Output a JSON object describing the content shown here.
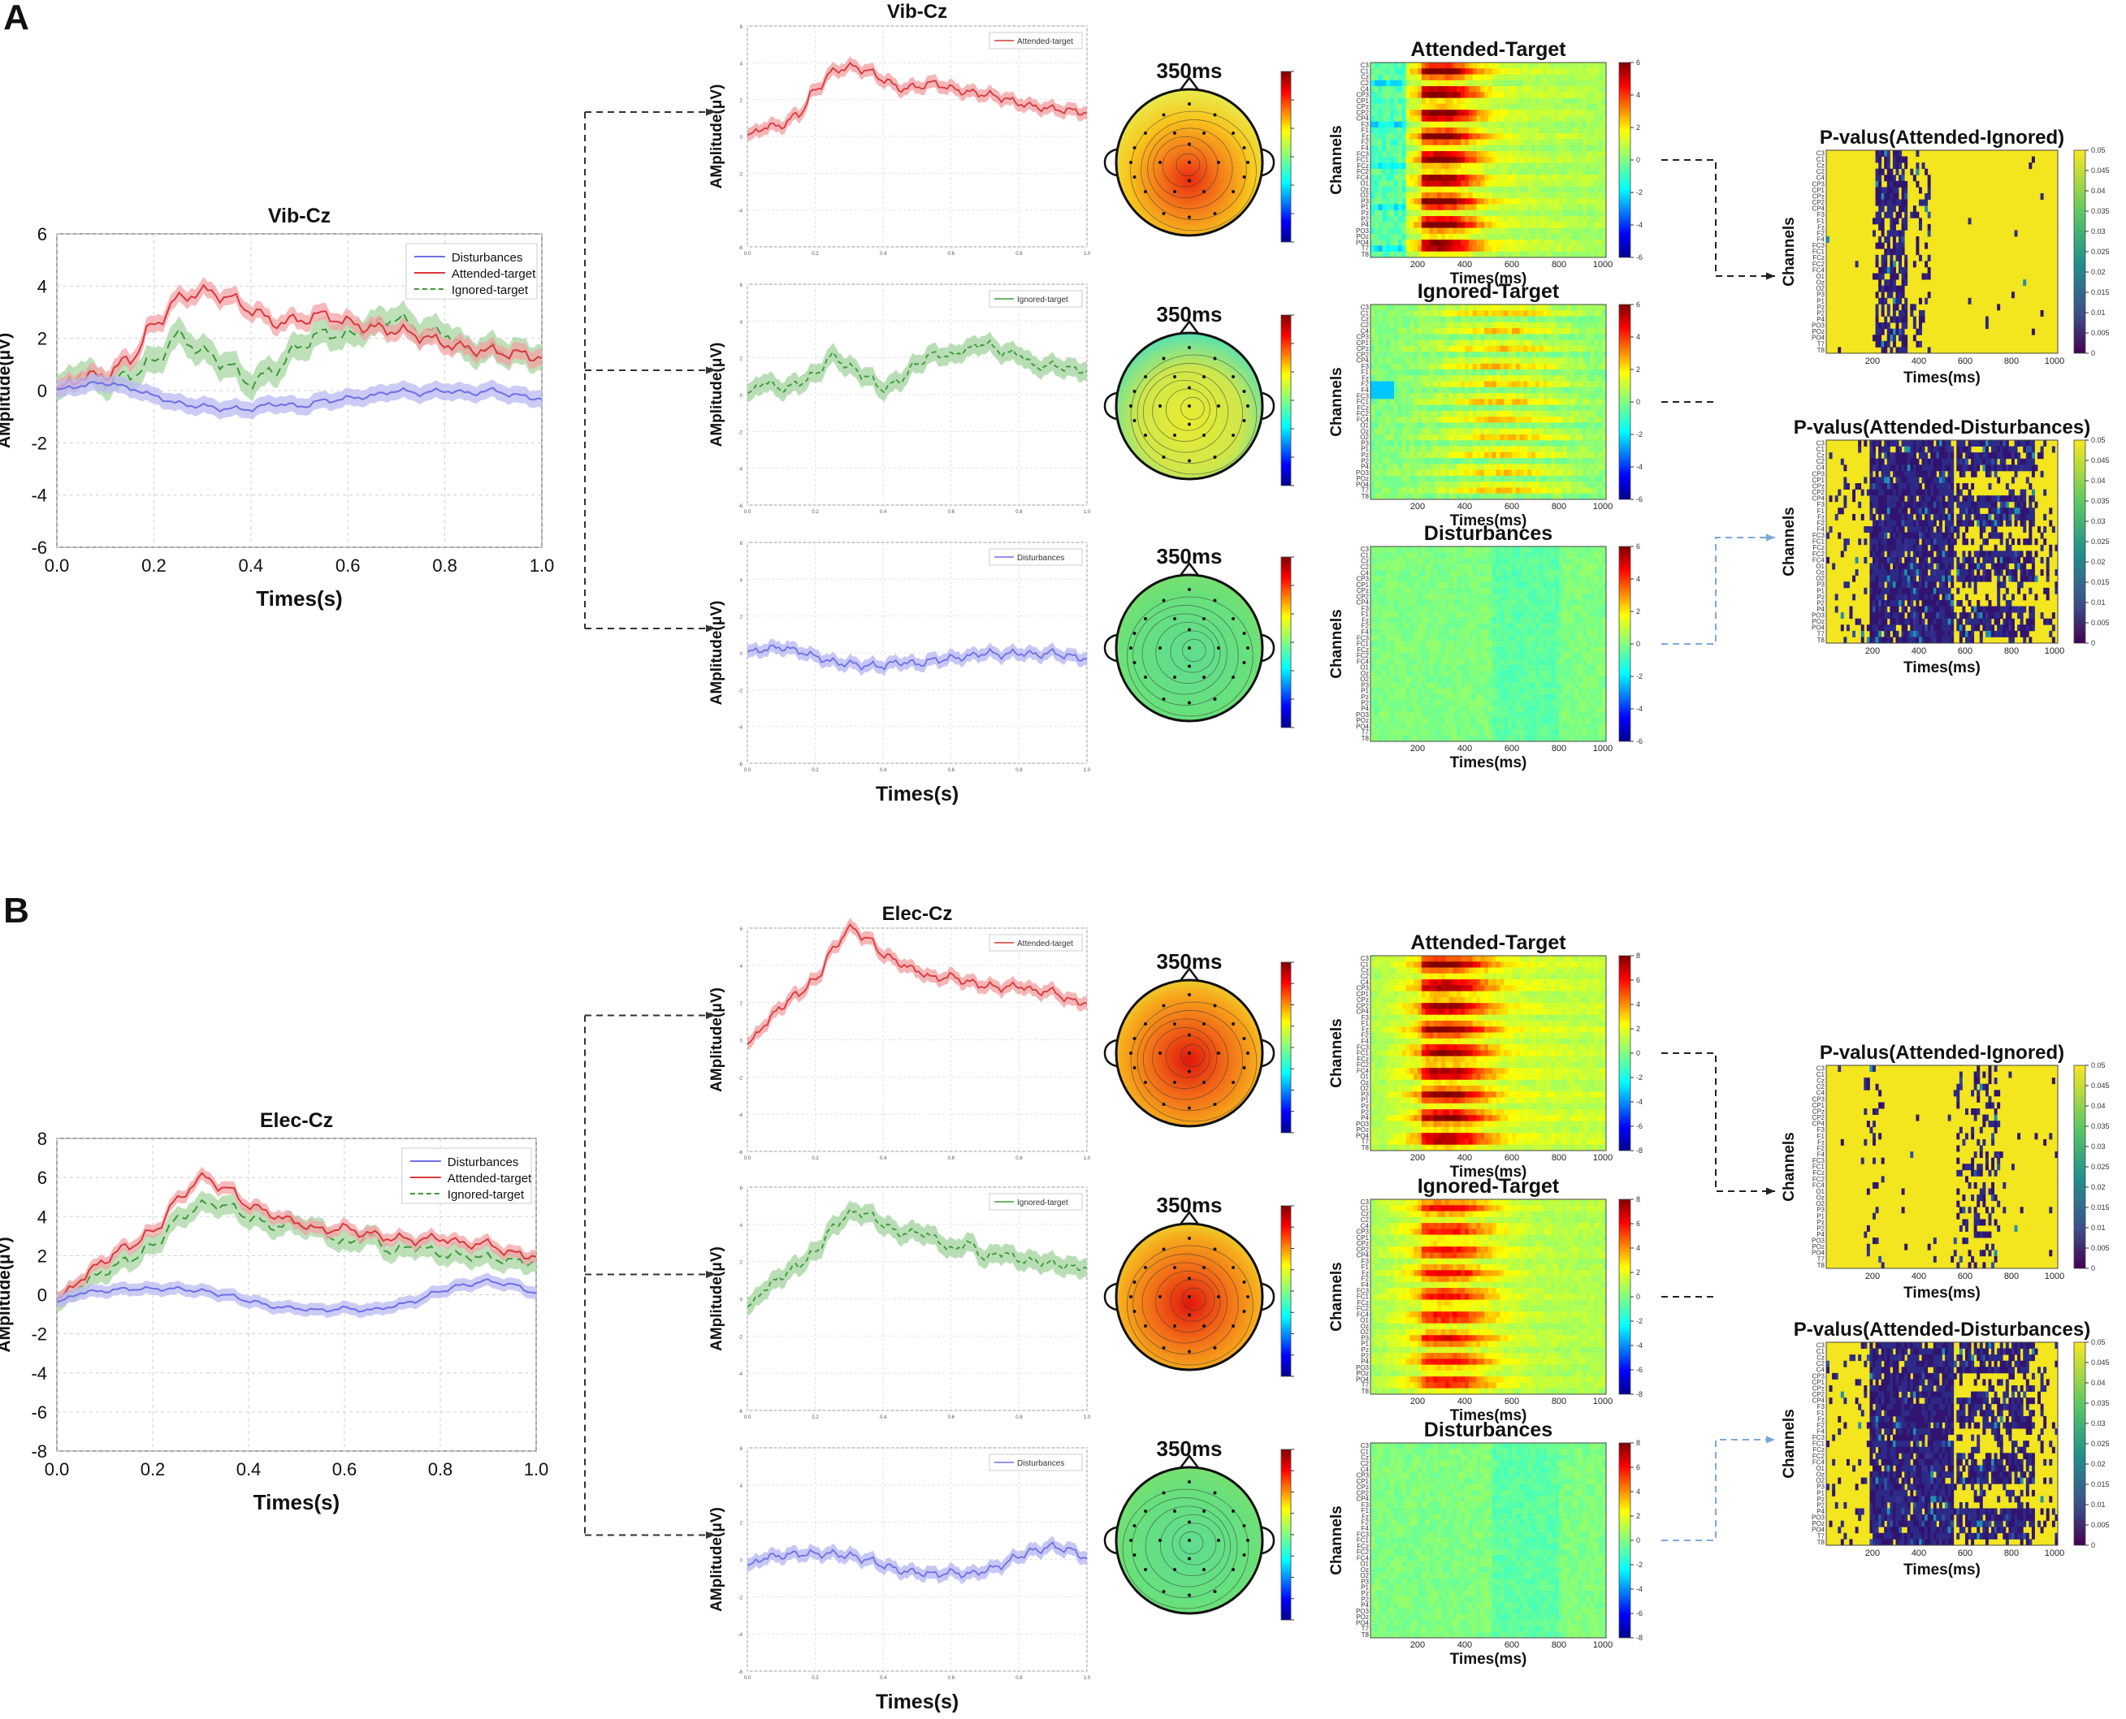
{
  "colors": {
    "attended": "#d9393c",
    "ignored": "#3d9a3a",
    "disturb": "#6f6fe8",
    "attended_band": "#f3a3a5",
    "ignored_band": "#a7d6a2",
    "disturb_band": "#b9b9f3"
  },
  "panels": [
    {
      "label": "A",
      "main": {
        "title": "Vib-Cz",
        "ylabel": "AMplitude(μV)",
        "xlabel": "Times(s)",
        "yticks": [
          "6",
          "4",
          "2",
          "0",
          "-2",
          "-4",
          "-6"
        ],
        "xticks": [
          "0.0",
          "0.2",
          "0.4",
          "0.6",
          "0.8",
          "1.0"
        ],
        "legend": [
          "Disturbances",
          "Attended-target",
          "Ignored-target"
        ]
      },
      "small_title": "Vib-Cz",
      "small": [
        {
          "legend": "Attended-target",
          "ylabel": "AMplitude(μV)"
        },
        {
          "legend": "Ignored-target",
          "ylabel": "AMplitude(μV)"
        },
        {
          "legend": "Disturbances",
          "ylabel": "AMplitude(μV)",
          "xlabel": "Times(s)"
        }
      ],
      "topo": [
        "350ms",
        "350ms",
        "350ms"
      ],
      "heat": [
        {
          "title": "Attended-Target",
          "ylabel": "Channels",
          "xlabel": "Times(ms)"
        },
        {
          "title": "Ignored-Target",
          "ylabel": "Channels",
          "xlabel": "Times(ms)"
        },
        {
          "title": "Disturbances",
          "ylabel": "Channels",
          "xlabel": "Times(ms)"
        }
      ],
      "heat_xticks": [
        "200",
        "400",
        "600",
        "800",
        "1000"
      ],
      "heat_cticks": [
        "6",
        "4",
        "2",
        "0",
        "-2",
        "-4",
        "-6"
      ],
      "pval": [
        {
          "title": "P-valus(Attended-Ignored)",
          "ylabel": "Channels",
          "xlabel": "Times(ms)"
        },
        {
          "title": "P-valus(Attended-Disturbances)",
          "ylabel": "Channels",
          "xlabel": "Times(ms)"
        }
      ],
      "pval_cticks": [
        "0.05",
        "0.045",
        "0.04",
        "0.035",
        "0.03",
        "0.025",
        "0.02",
        "0.015",
        "0.01",
        "0.005",
        "0"
      ]
    },
    {
      "label": "B",
      "main": {
        "title": "Elec-Cz",
        "ylabel": "AMplitude(μV)",
        "xlabel": "Times(s)",
        "yticks": [
          "8",
          "6",
          "4",
          "2",
          "0",
          "-2",
          "-4",
          "-6",
          "-8"
        ],
        "xticks": [
          "0.0",
          "0.2",
          "0.4",
          "0.6",
          "0.8",
          "1.0"
        ],
        "legend": [
          "Disturbances",
          "Attended-target",
          "Ignored-target"
        ]
      },
      "small_title": "Elec-Cz",
      "small": [
        {
          "legend": "Attended-target",
          "ylabel": "AMplitude(μV)"
        },
        {
          "legend": "Ignored-target",
          "ylabel": "AMplitude(μV)"
        },
        {
          "legend": "Disturbances",
          "ylabel": "AMplitude(μV)",
          "xlabel": "Times(s)"
        }
      ],
      "topo": [
        "350ms",
        "350ms",
        "350ms"
      ],
      "heat": [
        {
          "title": "Attended-Target",
          "ylabel": "Channels",
          "xlabel": "Times(ms)"
        },
        {
          "title": "Ignored-Target",
          "ylabel": "Channels",
          "xlabel": "Times(ms)"
        },
        {
          "title": "Disturbances",
          "ylabel": "Channels",
          "xlabel": "Times(ms)"
        }
      ],
      "heat_xticks": [
        "200",
        "400",
        "600",
        "800",
        "1000"
      ],
      "heat_cticks": [
        "8",
        "6",
        "4",
        "2",
        "0",
        "-2",
        "-4",
        "-6",
        "-8"
      ],
      "pval": [
        {
          "title": "P-valus(Attended-Ignored)",
          "ylabel": "Channels",
          "xlabel": "Times(ms)"
        },
        {
          "title": "P-valus(Attended-Disturbances)",
          "ylabel": "Channels",
          "xlabel": "Times(ms)"
        }
      ],
      "pval_cticks": [
        "0.05",
        "0.045",
        "0.04",
        "0.035",
        "0.03",
        "0.025",
        "0.02",
        "0.015",
        "0.01",
        "0.005",
        "0"
      ]
    }
  ],
  "chart_data": [
    {
      "type": "line",
      "title": "Vib-Cz",
      "xlabel": "Times(s)",
      "ylabel": "AMplitude(μV)",
      "xlim": [
        0,
        1
      ],
      "ylim": [
        -6,
        6
      ],
      "x": [
        0,
        0.05,
        0.1,
        0.15,
        0.2,
        0.25,
        0.3,
        0.35,
        0.4,
        0.45,
        0.5,
        0.55,
        0.6,
        0.65,
        0.7,
        0.75,
        0.8,
        0.85,
        0.9,
        0.95,
        1.0
      ],
      "series": [
        {
          "name": "Attended-target",
          "values": [
            0,
            0.5,
            0.6,
            1.2,
            2.5,
            3.5,
            3.8,
            3.6,
            3.1,
            2.6,
            2.7,
            2.9,
            2.6,
            2.4,
            2.3,
            2.1,
            1.8,
            1.6,
            1.5,
            1.4,
            1.3
          ]
        },
        {
          "name": "Ignored-target",
          "values": [
            0,
            0.7,
            0.3,
            0.6,
            1.1,
            2.1,
            1.5,
            1.0,
            0.3,
            0.8,
            1.7,
            2.2,
            2.1,
            2.5,
            2.8,
            2.3,
            2.2,
            1.5,
            1.6,
            1.4,
            1.3
          ]
        },
        {
          "name": "Disturbances",
          "values": [
            0,
            0.2,
            0.3,
            0.1,
            -0.2,
            -0.5,
            -0.6,
            -0.7,
            -0.7,
            -0.5,
            -0.6,
            -0.4,
            -0.3,
            -0.2,
            0.0,
            -0.1,
            0.0,
            -0.1,
            0.0,
            -0.2,
            -0.3
          ]
        }
      ]
    },
    {
      "type": "line",
      "title": "Elec-Cz",
      "xlabel": "Times(s)",
      "ylabel": "AMplitude(μV)",
      "xlim": [
        0,
        1
      ],
      "ylim": [
        -8,
        8
      ],
      "x": [
        0,
        0.05,
        0.1,
        0.15,
        0.2,
        0.25,
        0.3,
        0.35,
        0.4,
        0.45,
        0.5,
        0.55,
        0.6,
        0.65,
        0.7,
        0.75,
        0.8,
        0.85,
        0.9,
        0.95,
        1.0
      ],
      "series": [
        {
          "name": "Attended-target",
          "values": [
            -0.3,
            0.8,
            1.8,
            2.5,
            3.2,
            4.8,
            6.0,
            5.5,
            4.6,
            4.1,
            3.7,
            3.3,
            3.4,
            3.1,
            2.9,
            2.8,
            2.9,
            2.6,
            2.6,
            2.1,
            2.0
          ]
        },
        {
          "name": "Ignored-target",
          "values": [
            -0.5,
            0.5,
            1.2,
            1.8,
            2.5,
            3.8,
            4.6,
            4.6,
            4.0,
            3.5,
            3.6,
            3.3,
            2.6,
            3.0,
            2.2,
            2.5,
            2.1,
            2.0,
            1.9,
            1.7,
            1.7
          ]
        },
        {
          "name": "Disturbances",
          "values": [
            -0.4,
            0.1,
            0.2,
            0.3,
            0.3,
            0.3,
            0.2,
            0.0,
            -0.3,
            -0.6,
            -0.7,
            -0.8,
            -0.7,
            -0.8,
            -0.6,
            -0.3,
            0.2,
            0.5,
            0.7,
            0.5,
            0.1
          ]
        }
      ]
    }
  ]
}
